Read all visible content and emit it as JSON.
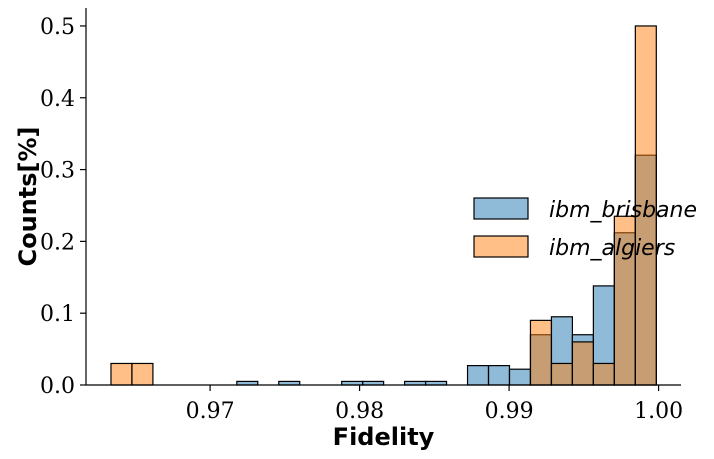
{
  "chart_data": {
    "type": "histogram",
    "xlabel": "Fidelity",
    "ylabel": "Counts[%]",
    "xlim": [
      0.9617,
      1.0015
    ],
    "ylim": [
      0,
      0.525
    ],
    "xticks": [
      "0.97",
      "0.98",
      "0.99",
      "1.00"
    ],
    "xtick_values": [
      0.97,
      0.98,
      0.99,
      1.0
    ],
    "yticks": [
      "0.0",
      "0.1",
      "0.2",
      "0.3",
      "0.4",
      "0.5"
    ],
    "ytick_values": [
      0.0,
      0.1,
      0.2,
      0.3,
      0.4,
      0.5
    ],
    "bin_start": 0.96337,
    "bin_width": 0.001403,
    "bin_count": 26,
    "legend_position": "center-right",
    "grid": false,
    "series": [
      {
        "name": "ibm_brisbane",
        "color": "#1f77b4",
        "values": [
          0,
          0,
          0,
          0,
          0,
          0,
          0.005,
          0,
          0.005,
          0,
          0,
          0.005,
          0.005,
          0,
          0.005,
          0.005,
          0,
          0.027,
          0.027,
          0.022,
          0.07,
          0.095,
          0.07,
          0.138,
          0.212,
          0.32
        ]
      },
      {
        "name": "ibm_algiers",
        "color": "#ff7f0e",
        "values": [
          0.03,
          0.03,
          0,
          0,
          0,
          0,
          0,
          0,
          0,
          0,
          0,
          0,
          0,
          0,
          0,
          0,
          0,
          0,
          0,
          0,
          0.09,
          0.03,
          0.06,
          0.03,
          0.235,
          0.5
        ]
      }
    ]
  }
}
